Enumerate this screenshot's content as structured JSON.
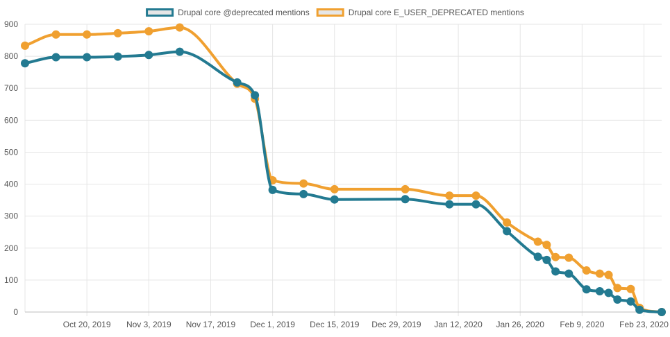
{
  "chart_data": {
    "type": "line",
    "title": "",
    "xlabel": "",
    "ylabel": "",
    "ylim": [
      0,
      900
    ],
    "yticks": [
      0,
      100,
      200,
      300,
      400,
      500,
      600,
      700,
      800,
      900
    ],
    "xtick_labels": [
      "Oct 20, 2019",
      "Nov 3, 2019",
      "Nov 17, 2019",
      "Dec 1, 2019",
      "Dec 15, 2019",
      "Dec 29, 2019",
      "Jan 12, 2020",
      "Jan 26, 2020",
      "Feb 9, 2020",
      "Feb 23, 2020"
    ],
    "xtick_days": [
      14,
      28,
      42,
      56,
      70,
      84,
      98,
      112,
      126,
      140
    ],
    "x_start_label": "Oct 6, 2019",
    "x_range_days": [
      0,
      144
    ],
    "grid": true,
    "legend_position": "top-center",
    "series": [
      {
        "name": "Drupal core @deprecated mentions",
        "color": "#237a91",
        "x_days": [
          0,
          7,
          14,
          21,
          28,
          35,
          48,
          52,
          56,
          63,
          70,
          86,
          96,
          102,
          109,
          116,
          118,
          120,
          123,
          127,
          130,
          132,
          134,
          137,
          139,
          144
        ],
        "values": [
          778,
          797,
          797,
          799,
          804,
          814,
          718,
          678,
          382,
          369,
          352,
          353,
          337,
          337,
          253,
          173,
          163,
          127,
          120,
          71,
          65,
          60,
          39,
          33,
          7,
          0
        ]
      },
      {
        "name": "Drupal core E_USER_DEPRECATED mentions",
        "color": "#f0a030",
        "x_days": [
          0,
          7,
          14,
          21,
          28,
          35,
          48,
          52,
          56,
          63,
          70,
          86,
          96,
          102,
          109,
          116,
          118,
          120,
          123,
          127,
          130,
          132,
          134,
          137,
          139,
          144
        ],
        "values": [
          833,
          868,
          868,
          872,
          878,
          890,
          714,
          667,
          412,
          402,
          384,
          384,
          364,
          364,
          280,
          220,
          210,
          172,
          170,
          130,
          120,
          116,
          75,
          72,
          13,
          0
        ]
      }
    ]
  }
}
